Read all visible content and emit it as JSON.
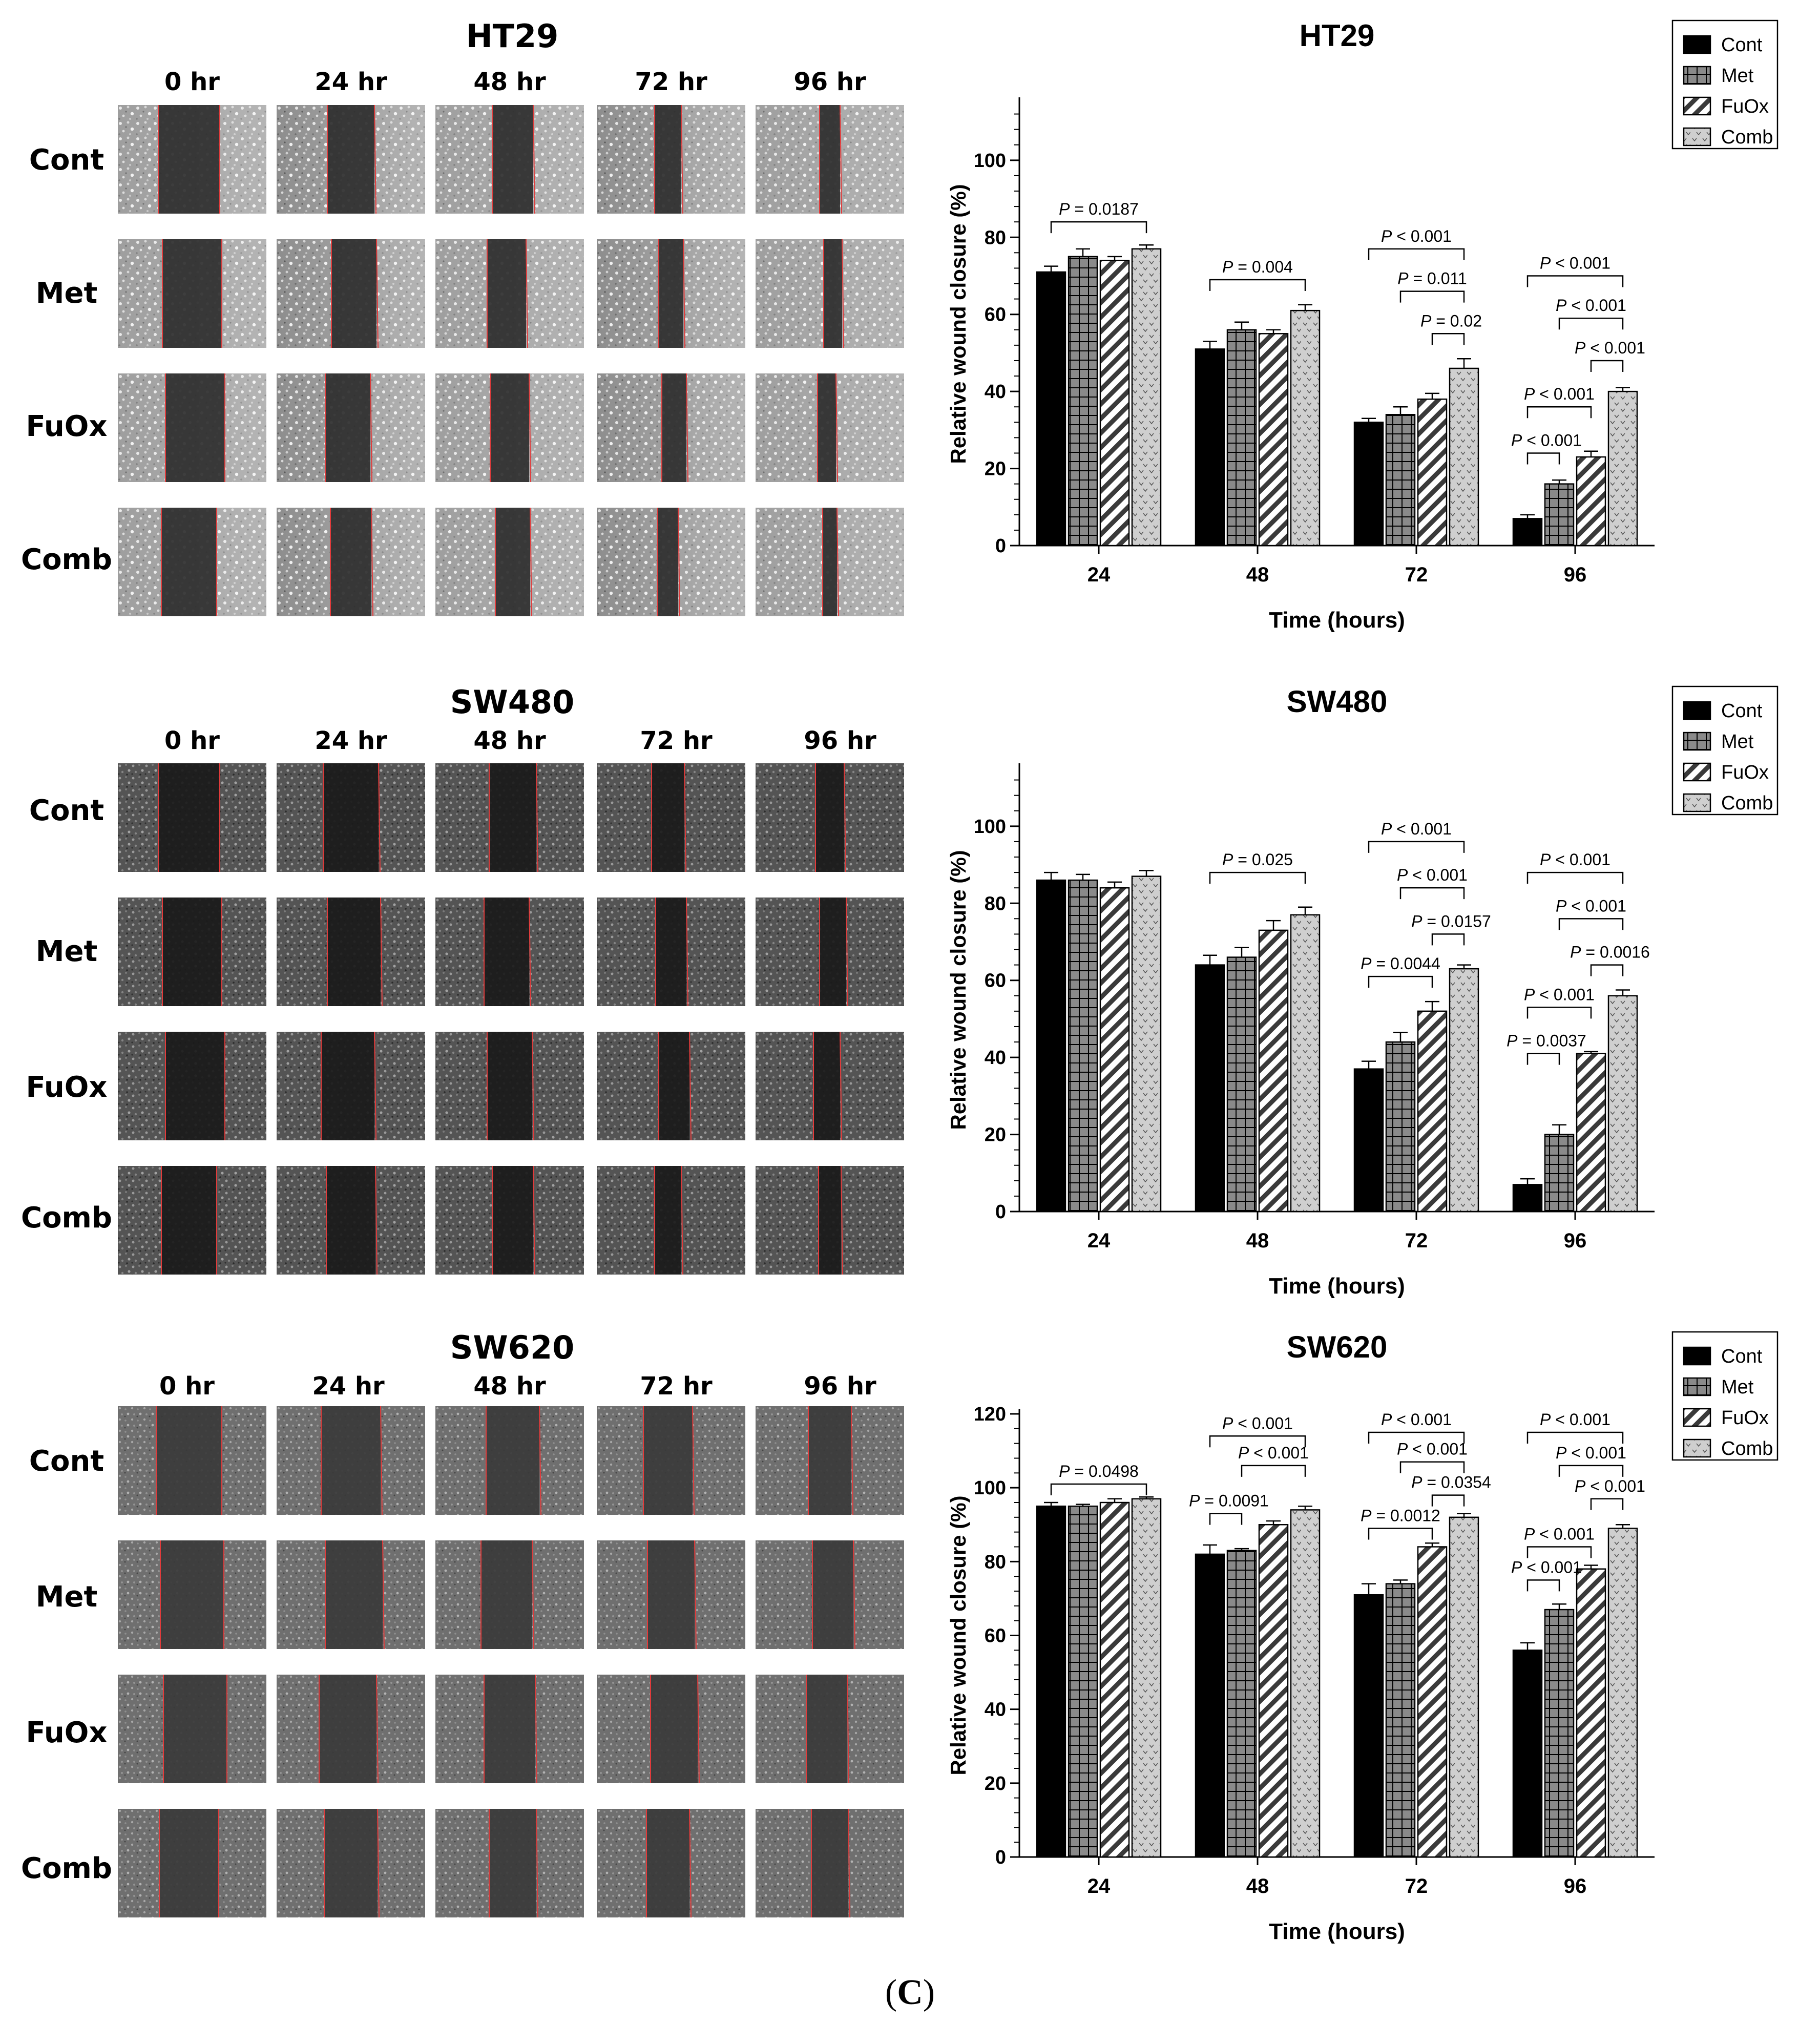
{
  "panels": [
    {
      "cell_line": "HT29",
      "timepoints": [
        "0 hr",
        "24 hr",
        "48 hr",
        "72 hr",
        "96 hr"
      ],
      "conditions": [
        "Cont",
        "Met",
        "FuOx",
        "Comb"
      ],
      "micro_style": "bright",
      "chart_data": {
        "type": "bar",
        "title": "HT29",
        "xlabel": "Time (hours)",
        "ylabel": "Relative wound closure (%)",
        "ylim": [
          0,
          115
        ],
        "yticks": [
          0,
          20,
          40,
          60,
          80,
          100
        ],
        "categories": [
          "24",
          "48",
          "72",
          "96"
        ],
        "series": [
          {
            "name": "Cont",
            "values": [
              71,
              51,
              32,
              7
            ],
            "errors": [
              1.5,
              2,
              1,
              1
            ]
          },
          {
            "name": "Met",
            "values": [
              75,
              56,
              34,
              16
            ],
            "errors": [
              2,
              2,
              2,
              1
            ]
          },
          {
            "name": "FuOx",
            "values": [
              74,
              55,
              38,
              23
            ],
            "errors": [
              1,
              1,
              1.5,
              1.5
            ]
          },
          {
            "name": "Comb",
            "values": [
              77,
              61,
              46,
              40
            ],
            "errors": [
              1,
              1.5,
              2.5,
              1
            ]
          }
        ],
        "legend_position": "top-right",
        "annotations": [
          {
            "group": 0,
            "from": 0,
            "to": 3,
            "y": 84,
            "label": "P = 0.0187"
          },
          {
            "group": 1,
            "from": 0,
            "to": 3,
            "y": 69,
            "label": "P = 0.004"
          },
          {
            "group": 2,
            "from": 0,
            "to": 3,
            "y": 77,
            "label": "P < 0.001"
          },
          {
            "group": 2,
            "from": 1,
            "to": 3,
            "y": 66,
            "label": "P = 0.011"
          },
          {
            "group": 2,
            "from": 2,
            "to": 3,
            "y": 55,
            "label": "P = 0.02"
          },
          {
            "group": 3,
            "from": 0,
            "to": 3,
            "y": 70,
            "label": "P < 0.001"
          },
          {
            "group": 3,
            "from": 1,
            "to": 3,
            "y": 59,
            "label": "P < 0.001"
          },
          {
            "group": 3,
            "from": 2,
            "to": 3,
            "y": 48,
            "label": "P < 0.001"
          },
          {
            "group": 3,
            "from": 0,
            "to": 2,
            "y": 36,
            "label": "P < 0.001"
          },
          {
            "group": 3,
            "from": 0,
            "to": 1,
            "y": 24,
            "label": "P < 0.001"
          }
        ]
      }
    },
    {
      "cell_line": "SW480",
      "timepoints": [
        "0 hr",
        "24 hr",
        "48 hr",
        "72 hr",
        "96 hr"
      ],
      "conditions": [
        "Cont",
        "Met",
        "FuOx",
        "Comb"
      ],
      "micro_style": "dark",
      "chart_data": {
        "type": "bar",
        "title": "SW480",
        "xlabel": "Time (hours)",
        "ylabel": "Relative wound closure (%)",
        "ylim": [
          0,
          115
        ],
        "yticks": [
          0,
          20,
          40,
          60,
          80,
          100
        ],
        "categories": [
          "24",
          "48",
          "72",
          "96"
        ],
        "series": [
          {
            "name": "Cont",
            "values": [
              86,
              64,
              37,
              7
            ],
            "errors": [
              2,
              2.5,
              2,
              1.5
            ]
          },
          {
            "name": "Met",
            "values": [
              86,
              66,
              44,
              20
            ],
            "errors": [
              1.5,
              2.5,
              2.5,
              2.5
            ]
          },
          {
            "name": "FuOx",
            "values": [
              84,
              73,
              52,
              41
            ],
            "errors": [
              1.5,
              2.5,
              2.5,
              0.5
            ]
          },
          {
            "name": "Comb",
            "values": [
              87,
              77,
              63,
              56
            ],
            "errors": [
              1.5,
              2,
              1,
              1.5
            ]
          }
        ],
        "legend_position": "top-right",
        "annotations": [
          {
            "group": 1,
            "from": 0,
            "to": 3,
            "y": 88,
            "label": "P = 0.025"
          },
          {
            "group": 2,
            "from": 0,
            "to": 3,
            "y": 96,
            "label": "P < 0.001"
          },
          {
            "group": 2,
            "from": 1,
            "to": 3,
            "y": 84,
            "label": "P < 0.001"
          },
          {
            "group": 2,
            "from": 2,
            "to": 3,
            "y": 72,
            "label": "P = 0.0157"
          },
          {
            "group": 2,
            "from": 0,
            "to": 2,
            "y": 61,
            "label": "P = 0.0044"
          },
          {
            "group": 3,
            "from": 0,
            "to": 3,
            "y": 88,
            "label": "P < 0.001"
          },
          {
            "group": 3,
            "from": 1,
            "to": 3,
            "y": 76,
            "label": "P < 0.001"
          },
          {
            "group": 3,
            "from": 2,
            "to": 3,
            "y": 64,
            "label": "P = 0.0016"
          },
          {
            "group": 3,
            "from": 0,
            "to": 2,
            "y": 53,
            "label": "P < 0.001"
          },
          {
            "group": 3,
            "from": 0,
            "to": 1,
            "y": 41,
            "label": "P = 0.0037"
          }
        ]
      }
    },
    {
      "cell_line": "SW620",
      "timepoints": [
        "0 hr",
        "24 hr",
        "48 hr",
        "72 hr",
        "96 hr"
      ],
      "conditions": [
        "Cont",
        "Met",
        "FuOx",
        "Comb"
      ],
      "micro_style": "grey",
      "chart_data": {
        "type": "bar",
        "title": "SW620",
        "xlabel": "Time (hours)",
        "ylabel": "Relative wound closure (%)",
        "ylim": [
          0,
          120
        ],
        "yticks": [
          0,
          20,
          40,
          60,
          80,
          100,
          120
        ],
        "categories": [
          "24",
          "48",
          "72",
          "96"
        ],
        "series": [
          {
            "name": "Cont",
            "values": [
              95,
              82,
              71,
              56
            ],
            "errors": [
              1,
              2.5,
              3,
              2
            ]
          },
          {
            "name": "Met",
            "values": [
              95,
              83,
              74,
              67
            ],
            "errors": [
              0.5,
              0.5,
              1,
              1.5
            ]
          },
          {
            "name": "FuOx",
            "values": [
              96,
              90,
              84,
              78
            ],
            "errors": [
              1,
              1,
              1,
              1
            ]
          },
          {
            "name": "Comb",
            "values": [
              97,
              94,
              92,
              89
            ],
            "errors": [
              0.5,
              1,
              1,
              1
            ]
          }
        ],
        "legend_position": "top-right",
        "annotations": [
          {
            "group": 0,
            "from": 0,
            "to": 3,
            "y": 101,
            "label": "P = 0.0498"
          },
          {
            "group": 1,
            "from": 0,
            "to": 3,
            "y": 114,
            "label": "P < 0.001"
          },
          {
            "group": 1,
            "from": 1,
            "to": 3,
            "y": 106,
            "label": "P < 0.001"
          },
          {
            "group": 1,
            "from": 0,
            "to": 1,
            "y": 93,
            "label": "P = 0.0091"
          },
          {
            "group": 2,
            "from": 0,
            "to": 3,
            "y": 115,
            "label": "P < 0.001"
          },
          {
            "group": 2,
            "from": 1,
            "to": 3,
            "y": 107,
            "label": "P < 0.001"
          },
          {
            "group": 2,
            "from": 2,
            "to": 3,
            "y": 98,
            "label": "P = 0.0354"
          },
          {
            "group": 2,
            "from": 0,
            "to": 2,
            "y": 89,
            "label": "P = 0.0012"
          },
          {
            "group": 3,
            "from": 0,
            "to": 3,
            "y": 115,
            "label": "P < 0.001"
          },
          {
            "group": 3,
            "from": 1,
            "to": 3,
            "y": 106,
            "label": "P < 0.001"
          },
          {
            "group": 3,
            "from": 2,
            "to": 3,
            "y": 97,
            "label": "P < 0.001"
          },
          {
            "group": 3,
            "from": 0,
            "to": 2,
            "y": 84,
            "label": "P < 0.001"
          },
          {
            "group": 3,
            "from": 0,
            "to": 1,
            "y": 75,
            "label": "P < 0.001"
          }
        ]
      }
    }
  ],
  "caption": {
    "open": "(",
    "letter": "C",
    "close": ")"
  }
}
